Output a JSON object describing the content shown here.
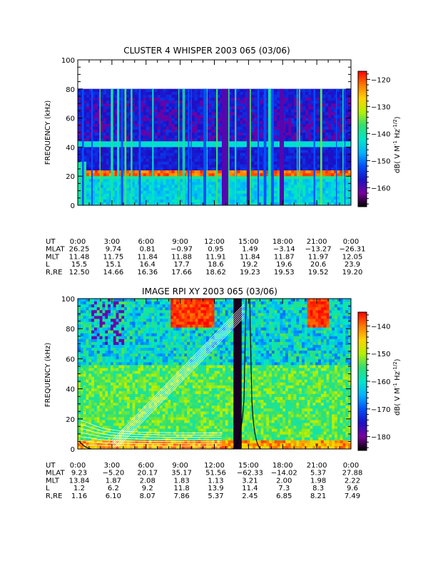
{
  "page": {
    "background": "#ffffff"
  },
  "colormap_stops": [
    "#000000",
    "#7a00a0",
    "#1a10c8",
    "#0050ff",
    "#00b4ff",
    "#00e6c8",
    "#30e070",
    "#b4f000",
    "#ffd200",
    "#ff7800",
    "#ff0000"
  ],
  "chart_data": [
    {
      "type": "heatmap",
      "id": "cluster",
      "title": "CLUSTER 4 WHISPER 2003 065 (03/06)",
      "ylabel": "FREQUENCY (kHz)",
      "ylim": [
        0,
        100
      ],
      "y_ticks": [
        0,
        20,
        40,
        60,
        80,
        100
      ],
      "data_ylim": [
        0,
        80
      ],
      "x_tick_hours": [
        0,
        3,
        6,
        9,
        12,
        15,
        18,
        21,
        24
      ],
      "colorbar": {
        "label": "dB( V M⁻¹ Hz⁻¹ᐟ²)",
        "label_parts": [
          "dB( V M",
          "-1",
          " Hz",
          "-1/2",
          ")"
        ],
        "range": [
          -167,
          -117
        ],
        "ticks": [
          -120,
          -130,
          -140,
          -150,
          -160
        ]
      },
      "ephemeris": {
        "labels": [
          "UT",
          "MLAT",
          "MLT",
          "L",
          "R,RE"
        ],
        "rows": [
          [
            "0:00",
            "3:00",
            "6:00",
            "9:00",
            "12:00",
            "15:00",
            "18:00",
            "21:00",
            "0:00"
          ],
          [
            "26.25",
            "9.74",
            "0.81",
            "−0.97",
            "0.95",
            "1.49",
            "−3.14",
            "−13.27",
            "−26.31"
          ],
          [
            "11.48",
            "11.75",
            "11.84",
            "11.88",
            "11.91",
            "11.84",
            "11.87",
            "11.97",
            "12.05"
          ],
          [
            "15.5",
            "15.1",
            "16.4",
            "17.7",
            "18.6",
            "19.2",
            "19.6",
            "20.6",
            "23.9"
          ],
          [
            "12.50",
            "14.66",
            "16.36",
            "17.66",
            "18.62",
            "19.23",
            "19.53",
            "19.52",
            "19.20"
          ]
        ]
      }
    },
    {
      "type": "heatmap",
      "id": "image",
      "title": "IMAGE RPI XY 2003 065 (03/06)",
      "ylabel": "FREQUENCY (kHz)",
      "ylim": [
        0,
        100
      ],
      "y_ticks": [
        0,
        20,
        40,
        60,
        80,
        100
      ],
      "data_ylim": [
        0,
        100
      ],
      "x_tick_hours": [
        0,
        3,
        6,
        9,
        12,
        15,
        18,
        21,
        24
      ],
      "colorbar": {
        "label": "dB( V M⁻¹ Hz⁻¹ᐟ²)",
        "label_parts": [
          "dB( V M",
          "-1",
          " Hz",
          "-1/2",
          ")"
        ],
        "range": [
          -185,
          -135
        ],
        "ticks": [
          -140,
          -150,
          -160,
          -170,
          -180
        ]
      },
      "ephemeris": {
        "labels": [
          "UT",
          "MLAT",
          "MLT",
          "L",
          "R,RE"
        ],
        "rows": [
          [
            "0:00",
            "3:00",
            "6:00",
            "9:00",
            "12:00",
            "15:00",
            "18:00",
            "21:00",
            "0:00"
          ],
          [
            "9.23",
            "−5.20",
            "20.17",
            "35.17",
            "51.56",
            "−62.33",
            "−14.02",
            "5.37",
            "27.88"
          ],
          [
            "13.84",
            "1.87",
            "2.08",
            "1.83",
            "1.13",
            "3.21",
            "2.00",
            "1.98",
            "2.22"
          ],
          [
            "1.2",
            "6.2",
            "9.2",
            "11.8",
            "13.9",
            "11.4",
            "7.3",
            "8.3",
            "9.6"
          ],
          [
            "1.16",
            "6.10",
            "8.07",
            "7.86",
            "5.37",
            "2.45",
            "6.85",
            "8.21",
            "7.49"
          ]
        ]
      }
    }
  ]
}
